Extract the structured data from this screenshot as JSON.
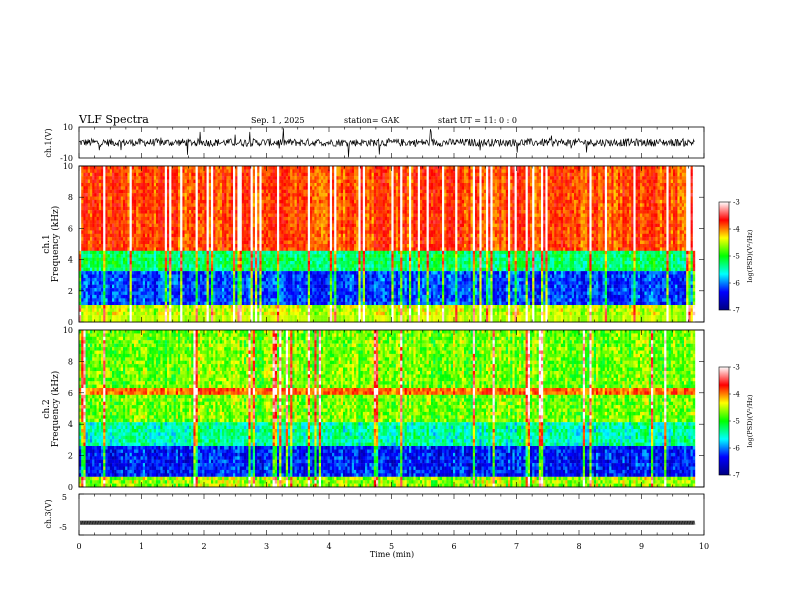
{
  "header": {
    "title": "VLF  Spectra",
    "date": "Sep. 1  , 2025",
    "station": "station= GAK",
    "start": "start  UT  =     11: 0   : 0"
  },
  "chart_data": [
    {
      "type": "line",
      "panel": "ch1-waveform",
      "ylabel": "ch.1(V)",
      "ylim": [
        -10,
        10
      ],
      "yticks": [
        "10",
        "-10"
      ],
      "xlim": [
        0,
        10
      ]
    },
    {
      "type": "heatmap",
      "panel": "ch1-spectrogram",
      "ylabel": "ch.1\nFrequency  (kHz)",
      "ylim": [
        0,
        10
      ],
      "yticks": [
        "0",
        "2",
        "4",
        "6",
        "8",
        "10"
      ],
      "xlim": [
        0,
        10
      ],
      "data_extent_min": 9.85,
      "colorbar": {
        "label": "log(PSD)(V²/Hz)",
        "range": [
          -7,
          -3
        ],
        "ticks": [
          "-3",
          "-4",
          "-5",
          "-6",
          "-7"
        ],
        "colors": [
          "#000080",
          "#0000ff",
          "#00ffff",
          "#00ff00",
          "#ffff00",
          "#ff0000",
          "#ffffff"
        ]
      }
    },
    {
      "type": "heatmap",
      "panel": "ch2-spectrogram",
      "ylabel": "ch.2\nFrequency  (kHz)",
      "ylim": [
        0,
        10
      ],
      "yticks": [
        "0",
        "2",
        "4",
        "6",
        "8",
        "10"
      ],
      "xlim": [
        0,
        10
      ],
      "data_extent_min": 9.85,
      "colorbar": {
        "label": "log(PSD)(V²/Hz)",
        "range": [
          -7,
          -3
        ],
        "ticks": [
          "-3",
          "-4",
          "-5",
          "-6",
          "-7"
        ],
        "colors": [
          "#000080",
          "#0000ff",
          "#00ffff",
          "#00ff00",
          "#ffff00",
          "#ff0000",
          "#ffffff"
        ]
      }
    },
    {
      "type": "line",
      "panel": "ch3-waveform",
      "ylabel": "ch.3(V)",
      "ylim": [
        -5,
        5
      ],
      "yticks": [
        "5",
        "-5"
      ],
      "xlim": [
        0,
        10
      ],
      "xticks": [
        "0",
        "1",
        "2",
        "3",
        "4",
        "5",
        "6",
        "7",
        "8",
        "9",
        "10"
      ],
      "xlabel": "Time  (min)",
      "level_v": -2
    }
  ]
}
